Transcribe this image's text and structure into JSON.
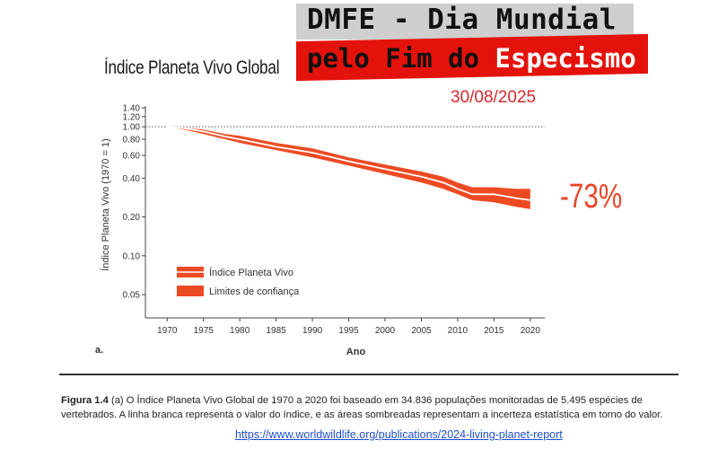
{
  "banner": {
    "line1": "DMFE - Dia Mundial",
    "line2_prefix": "pelo Fim do ",
    "line2_highlight": "Especismo",
    "grey_color": "#cfcfcf",
    "red_color": "#e3120b"
  },
  "date": "30/08/2025",
  "percent_label": "-73%",
  "panel_label": "a.",
  "caption": {
    "figure_label": "Figura 1.4",
    "text": "(a) O Índice Planeta Vivo Global de 1970 a 2020 foi baseado em 34.836 populações monitoradas de 5.495 espécies de vertebrados. A linha branca representa o valor do índice, e as áreas sombreadas representam a incerteza estatística em torno do valor."
  },
  "url": "https://www.worldwildlife.org/publications/2024-living-planet-report",
  "colors": {
    "series": "#e8452a",
    "band": "#ee4a22",
    "accent_text": "#d8272b"
  },
  "chart_data": {
    "type": "line",
    "title": "Índice Planeta Vivo Global",
    "xlabel": "Ano",
    "ylabel": "Índice Planeta Vivo (1970 = 1)",
    "yscale": "log",
    "xlim": [
      1967,
      2022
    ],
    "ylim": [
      0.033,
      1.45
    ],
    "xticks": [
      1970,
      1975,
      1980,
      1985,
      1990,
      1995,
      2000,
      2005,
      2010,
      2015,
      2020
    ],
    "yticks": [
      0.05,
      0.1,
      0.2,
      0.4,
      0.6,
      0.8,
      1.0,
      1.2,
      1.4
    ],
    "ytick_labels": [
      "0.05",
      "0.10",
      "0.20",
      "0.40",
      "0.60",
      "0.80",
      "1.00",
      "1.20",
      "1.40"
    ],
    "reference_line": 1.0,
    "legend": {
      "position": "lower-left",
      "entries": [
        "Índice Planeta Vivo",
        "Limites de confiança"
      ]
    },
    "series": [
      {
        "name": "Índice Planeta Vivo",
        "x": [
          1970,
          1972,
          1975,
          1978,
          1980,
          1985,
          1990,
          1995,
          2000,
          2005,
          2008,
          2010,
          2012,
          2015,
          2018,
          2020
        ],
        "values": [
          1.0,
          0.98,
          0.92,
          0.84,
          0.8,
          0.7,
          0.63,
          0.54,
          0.47,
          0.41,
          0.37,
          0.33,
          0.3,
          0.3,
          0.28,
          0.27
        ]
      },
      {
        "name": "Limites de confiança",
        "x": [
          1970,
          1972,
          1975,
          1978,
          1980,
          1985,
          1990,
          1995,
          2000,
          2005,
          2008,
          2010,
          2012,
          2015,
          2018,
          2020
        ],
        "upper": [
          1.0,
          0.99,
          0.95,
          0.88,
          0.85,
          0.75,
          0.68,
          0.58,
          0.51,
          0.45,
          0.41,
          0.37,
          0.34,
          0.34,
          0.33,
          0.33
        ],
        "lower": [
          1.0,
          0.96,
          0.88,
          0.8,
          0.75,
          0.66,
          0.58,
          0.5,
          0.43,
          0.37,
          0.33,
          0.3,
          0.27,
          0.26,
          0.24,
          0.23
        ]
      }
    ]
  }
}
